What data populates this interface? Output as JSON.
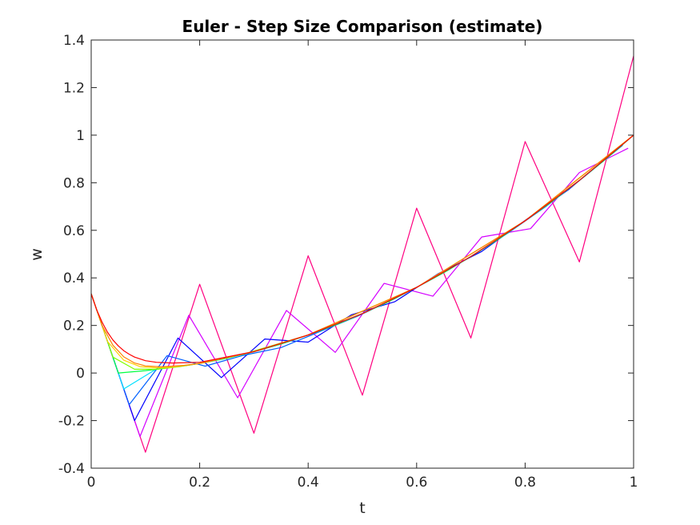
{
  "chart_data": {
    "type": "line",
    "title": "Euler - Step Size Comparison (estimate)",
    "xlabel": "t",
    "ylabel": "w",
    "xlim": [
      0,
      1
    ],
    "ylim": [
      -0.4,
      1.4
    ],
    "xticks": [
      0,
      0.2,
      0.4,
      0.6,
      0.8,
      1
    ],
    "xtick_labels": [
      "0",
      "0.2",
      "0.4",
      "0.6",
      "0.8",
      "1"
    ],
    "yticks": [
      -0.4,
      -0.2,
      0,
      0.2,
      0.4,
      0.6,
      0.8,
      1,
      1.2,
      1.4
    ],
    "ytick_labels": [
      "-0.4",
      "-0.2",
      "0",
      "0.2",
      "0.4",
      "0.6",
      "0.8",
      "1",
      "1.2",
      "1.4"
    ],
    "grid": false,
    "legend": "none",
    "series": [
      {
        "color": "#ff0080",
        "x": [
          0,
          0.1,
          0.2,
          0.3,
          0.4,
          0.5,
          0.6,
          0.7,
          0.8,
          0.9,
          1.0
        ],
        "y": [
          0.333,
          -0.333,
          0.373,
          -0.253,
          0.493,
          -0.093,
          0.693,
          0.147,
          0.973,
          0.467,
          1.333
        ]
      },
      {
        "color": "#d400ff",
        "x": [
          0,
          0.09,
          0.18,
          0.27,
          0.36,
          0.45,
          0.54,
          0.63,
          0.72,
          0.81,
          0.9,
          0.99
        ],
        "y": [
          0.333,
          -0.267,
          0.243,
          -0.104,
          0.263,
          0.087,
          0.377,
          0.323,
          0.572,
          0.607,
          0.843,
          0.945
        ]
      },
      {
        "color": "#0000ff",
        "x": [
          0,
          0.08,
          0.16,
          0.24,
          0.32,
          0.4,
          0.48,
          0.56,
          0.64,
          0.72,
          0.8,
          0.88,
          0.96
        ],
        "y": [
          0.333,
          -0.2,
          0.147,
          -0.019,
          0.143,
          0.13,
          0.245,
          0.3,
          0.418,
          0.511,
          0.642,
          0.771,
          0.924
        ]
      },
      {
        "color": "#0060ff",
        "x": [
          0,
          0.07,
          0.14,
          0.21,
          0.28,
          0.35,
          0.42,
          0.49,
          0.56,
          0.63,
          0.7,
          0.77,
          0.84,
          0.91,
          0.98
        ],
        "y": [
          0.333,
          -0.133,
          0.073,
          0.029,
          0.074,
          0.107,
          0.173,
          0.238,
          0.313,
          0.397,
          0.489,
          0.591,
          0.703,
          0.827,
          0.958
        ]
      },
      {
        "color": "#00e0ff",
        "x": [
          0,
          0.06,
          0.12,
          0.18,
          0.24,
          0.3,
          0.36,
          0.42,
          0.48,
          0.54,
          0.6,
          0.66,
          0.72,
          0.78,
          0.84,
          0.9,
          0.96
        ],
        "y": [
          0.333,
          -0.067,
          0.017,
          0.033,
          0.057,
          0.089,
          0.129,
          0.176,
          0.23,
          0.291,
          0.36,
          0.435,
          0.518,
          0.608,
          0.705,
          0.81,
          0.922
        ]
      },
      {
        "color": "#00ff40",
        "x": [
          0,
          0.05,
          0.1,
          0.15,
          0.2,
          0.25,
          0.3,
          0.35,
          0.4,
          0.45,
          0.5,
          0.55,
          0.6,
          0.65,
          0.7,
          0.75,
          0.8,
          0.85,
          0.9,
          0.95,
          1.0
        ],
        "y": [
          0.333,
          0.0,
          0.01,
          0.024,
          0.04,
          0.062,
          0.09,
          0.122,
          0.16,
          0.202,
          0.25,
          0.302,
          0.36,
          0.422,
          0.49,
          0.562,
          0.64,
          0.722,
          0.81,
          0.902,
          1.0
        ]
      },
      {
        "color": "#80ff00",
        "x": [
          0,
          0.04,
          0.08,
          0.12,
          0.16,
          0.2,
          0.28,
          0.4,
          0.6,
          0.8,
          1.0
        ],
        "y": [
          0.333,
          0.067,
          0.016,
          0.016,
          0.026,
          0.04,
          0.079,
          0.16,
          0.36,
          0.64,
          1.0
        ]
      },
      {
        "color": "#ffd000",
        "x": [
          0,
          0.03,
          0.06,
          0.09,
          0.12,
          0.15,
          0.2,
          0.3,
          0.4,
          0.6,
          0.8,
          1.0
        ],
        "y": [
          0.333,
          0.133,
          0.054,
          0.027,
          0.022,
          0.025,
          0.04,
          0.09,
          0.16,
          0.36,
          0.64,
          1.0
        ]
      },
      {
        "color": "#ff8000",
        "x": [
          0,
          0.02,
          0.04,
          0.06,
          0.08,
          0.1,
          0.13,
          0.17,
          0.2,
          0.3,
          0.4,
          0.6,
          0.8,
          1.0
        ],
        "y": [
          0.333,
          0.2,
          0.117,
          0.068,
          0.042,
          0.03,
          0.026,
          0.032,
          0.04,
          0.09,
          0.16,
          0.36,
          0.64,
          1.0
        ]
      },
      {
        "color": "#ff0000",
        "x": [
          0,
          0.01,
          0.02,
          0.03,
          0.04,
          0.05,
          0.06,
          0.07,
          0.08,
          0.1,
          0.12,
          0.15,
          0.2,
          0.3,
          0.4,
          0.5,
          0.6,
          0.7,
          0.8,
          0.9,
          1.0
        ],
        "y": [
          0.333,
          0.266,
          0.214,
          0.172,
          0.139,
          0.114,
          0.094,
          0.079,
          0.067,
          0.052,
          0.045,
          0.042,
          0.045,
          0.09,
          0.16,
          0.25,
          0.36,
          0.49,
          0.64,
          0.81,
          1.0
        ]
      }
    ]
  }
}
